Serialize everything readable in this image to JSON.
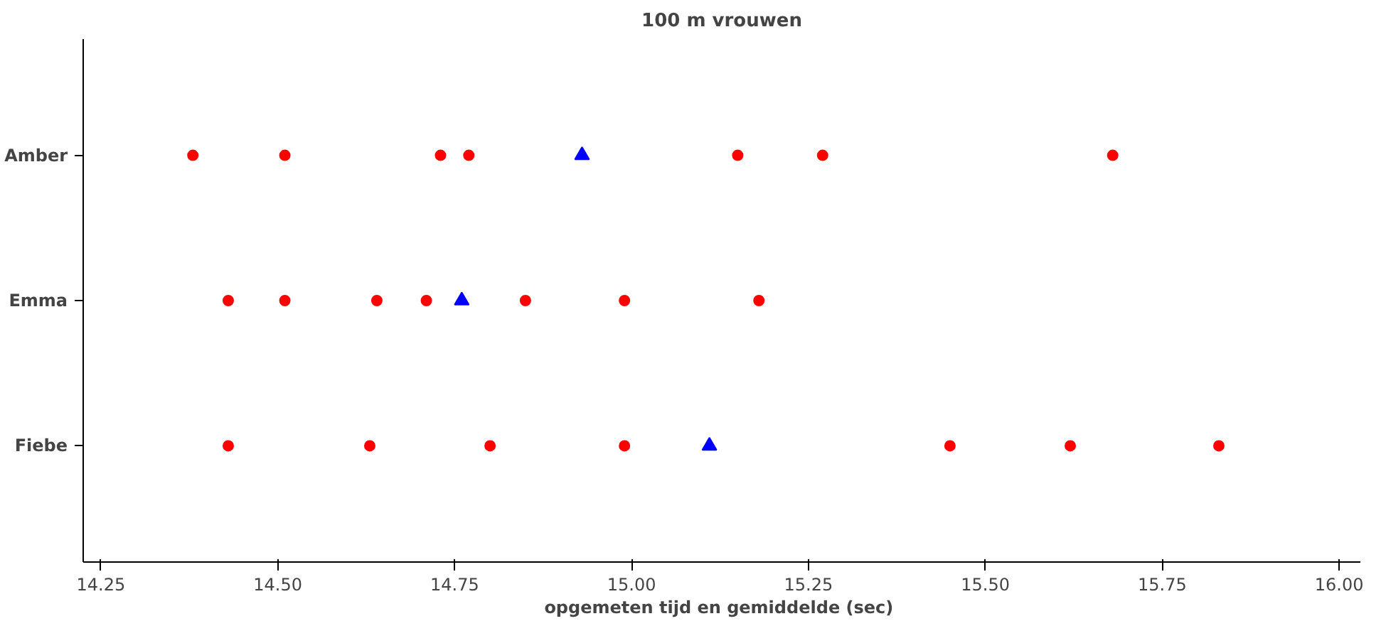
{
  "chart_data": {
    "type": "scatter",
    "orientation": "horizontal",
    "title": "100 m vrouwen",
    "xlabel": "opgemeten tijd en gemiddelde  (sec)",
    "categories": [
      "Amber",
      "Emma",
      "Fiebe"
    ],
    "series": [
      {
        "color": "#ff0000",
        "marker": "circle",
        "values": [
          14.38,
          14.43,
          14.43
        ]
      },
      {
        "color": "#ff0000",
        "marker": "circle",
        "values": [
          14.51,
          14.51,
          14.63
        ]
      },
      {
        "color": "#ff0000",
        "marker": "circle",
        "values": [
          14.73,
          14.64,
          14.8
        ]
      },
      {
        "color": "#ff0000",
        "marker": "circle",
        "values": [
          14.77,
          14.71,
          14.99
        ]
      },
      {
        "color": "#ff0000",
        "marker": "circle",
        "values": [
          15.15,
          14.85,
          15.45
        ]
      },
      {
        "color": "#ff0000",
        "marker": "circle",
        "values": [
          15.27,
          14.99,
          15.62
        ]
      },
      {
        "color": "#ff0000",
        "marker": "circle",
        "values": [
          15.68,
          15.18,
          15.83
        ]
      },
      {
        "color": "#0000ff",
        "marker": "triangle",
        "values": [
          14.93,
          14.76,
          15.11
        ]
      }
    ],
    "xlim": [
      14.225,
      16.03
    ],
    "xticks": [
      {
        "value": 14.25,
        "label": "14.25"
      },
      {
        "value": 14.5,
        "label": "14.50"
      },
      {
        "value": 14.75,
        "label": "14.75"
      },
      {
        "value": 15.0,
        "label": "15.00"
      },
      {
        "value": 15.25,
        "label": "15.25"
      },
      {
        "value": 15.5,
        "label": "15.50"
      },
      {
        "value": 15.75,
        "label": "15.75"
      },
      {
        "value": 16.0,
        "label": "16.00"
      }
    ],
    "grid": false
  }
}
